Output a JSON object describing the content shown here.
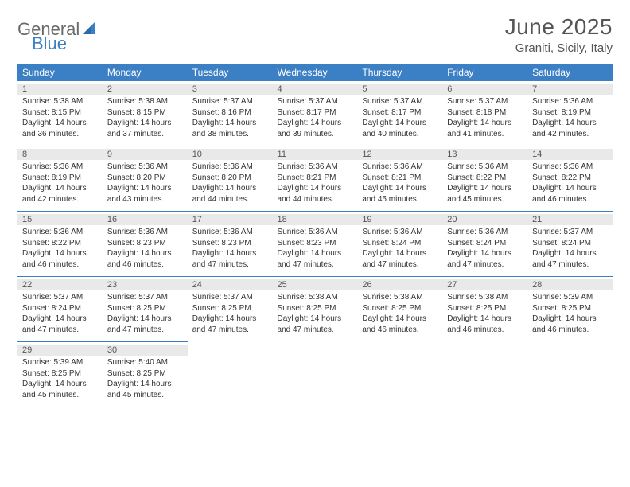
{
  "logo": {
    "part1": "General",
    "part2": "Blue"
  },
  "title": "June 2025",
  "location": "Graniti, Sicily, Italy",
  "colors": {
    "header_bg": "#3b7fc4",
    "header_text": "#ffffff",
    "daynum_bg": "#e9e9e9",
    "border": "#3b7fc4",
    "text": "#333333",
    "title_text": "#555555"
  },
  "weekdays": [
    "Sunday",
    "Monday",
    "Tuesday",
    "Wednesday",
    "Thursday",
    "Friday",
    "Saturday"
  ],
  "weeks": [
    [
      {
        "n": "1",
        "sr": "Sunrise: 5:38 AM",
        "ss": "Sunset: 8:15 PM",
        "d1": "Daylight: 14 hours",
        "d2": "and 36 minutes."
      },
      {
        "n": "2",
        "sr": "Sunrise: 5:38 AM",
        "ss": "Sunset: 8:15 PM",
        "d1": "Daylight: 14 hours",
        "d2": "and 37 minutes."
      },
      {
        "n": "3",
        "sr": "Sunrise: 5:37 AM",
        "ss": "Sunset: 8:16 PM",
        "d1": "Daylight: 14 hours",
        "d2": "and 38 minutes."
      },
      {
        "n": "4",
        "sr": "Sunrise: 5:37 AM",
        "ss": "Sunset: 8:17 PM",
        "d1": "Daylight: 14 hours",
        "d2": "and 39 minutes."
      },
      {
        "n": "5",
        "sr": "Sunrise: 5:37 AM",
        "ss": "Sunset: 8:17 PM",
        "d1": "Daylight: 14 hours",
        "d2": "and 40 minutes."
      },
      {
        "n": "6",
        "sr": "Sunrise: 5:37 AM",
        "ss": "Sunset: 8:18 PM",
        "d1": "Daylight: 14 hours",
        "d2": "and 41 minutes."
      },
      {
        "n": "7",
        "sr": "Sunrise: 5:36 AM",
        "ss": "Sunset: 8:19 PM",
        "d1": "Daylight: 14 hours",
        "d2": "and 42 minutes."
      }
    ],
    [
      {
        "n": "8",
        "sr": "Sunrise: 5:36 AM",
        "ss": "Sunset: 8:19 PM",
        "d1": "Daylight: 14 hours",
        "d2": "and 42 minutes."
      },
      {
        "n": "9",
        "sr": "Sunrise: 5:36 AM",
        "ss": "Sunset: 8:20 PM",
        "d1": "Daylight: 14 hours",
        "d2": "and 43 minutes."
      },
      {
        "n": "10",
        "sr": "Sunrise: 5:36 AM",
        "ss": "Sunset: 8:20 PM",
        "d1": "Daylight: 14 hours",
        "d2": "and 44 minutes."
      },
      {
        "n": "11",
        "sr": "Sunrise: 5:36 AM",
        "ss": "Sunset: 8:21 PM",
        "d1": "Daylight: 14 hours",
        "d2": "and 44 minutes."
      },
      {
        "n": "12",
        "sr": "Sunrise: 5:36 AM",
        "ss": "Sunset: 8:21 PM",
        "d1": "Daylight: 14 hours",
        "d2": "and 45 minutes."
      },
      {
        "n": "13",
        "sr": "Sunrise: 5:36 AM",
        "ss": "Sunset: 8:22 PM",
        "d1": "Daylight: 14 hours",
        "d2": "and 45 minutes."
      },
      {
        "n": "14",
        "sr": "Sunrise: 5:36 AM",
        "ss": "Sunset: 8:22 PM",
        "d1": "Daylight: 14 hours",
        "d2": "and 46 minutes."
      }
    ],
    [
      {
        "n": "15",
        "sr": "Sunrise: 5:36 AM",
        "ss": "Sunset: 8:22 PM",
        "d1": "Daylight: 14 hours",
        "d2": "and 46 minutes."
      },
      {
        "n": "16",
        "sr": "Sunrise: 5:36 AM",
        "ss": "Sunset: 8:23 PM",
        "d1": "Daylight: 14 hours",
        "d2": "and 46 minutes."
      },
      {
        "n": "17",
        "sr": "Sunrise: 5:36 AM",
        "ss": "Sunset: 8:23 PM",
        "d1": "Daylight: 14 hours",
        "d2": "and 47 minutes."
      },
      {
        "n": "18",
        "sr": "Sunrise: 5:36 AM",
        "ss": "Sunset: 8:23 PM",
        "d1": "Daylight: 14 hours",
        "d2": "and 47 minutes."
      },
      {
        "n": "19",
        "sr": "Sunrise: 5:36 AM",
        "ss": "Sunset: 8:24 PM",
        "d1": "Daylight: 14 hours",
        "d2": "and 47 minutes."
      },
      {
        "n": "20",
        "sr": "Sunrise: 5:36 AM",
        "ss": "Sunset: 8:24 PM",
        "d1": "Daylight: 14 hours",
        "d2": "and 47 minutes."
      },
      {
        "n": "21",
        "sr": "Sunrise: 5:37 AM",
        "ss": "Sunset: 8:24 PM",
        "d1": "Daylight: 14 hours",
        "d2": "and 47 minutes."
      }
    ],
    [
      {
        "n": "22",
        "sr": "Sunrise: 5:37 AM",
        "ss": "Sunset: 8:24 PM",
        "d1": "Daylight: 14 hours",
        "d2": "and 47 minutes."
      },
      {
        "n": "23",
        "sr": "Sunrise: 5:37 AM",
        "ss": "Sunset: 8:25 PM",
        "d1": "Daylight: 14 hours",
        "d2": "and 47 minutes."
      },
      {
        "n": "24",
        "sr": "Sunrise: 5:37 AM",
        "ss": "Sunset: 8:25 PM",
        "d1": "Daylight: 14 hours",
        "d2": "and 47 minutes."
      },
      {
        "n": "25",
        "sr": "Sunrise: 5:38 AM",
        "ss": "Sunset: 8:25 PM",
        "d1": "Daylight: 14 hours",
        "d2": "and 47 minutes."
      },
      {
        "n": "26",
        "sr": "Sunrise: 5:38 AM",
        "ss": "Sunset: 8:25 PM",
        "d1": "Daylight: 14 hours",
        "d2": "and 46 minutes."
      },
      {
        "n": "27",
        "sr": "Sunrise: 5:38 AM",
        "ss": "Sunset: 8:25 PM",
        "d1": "Daylight: 14 hours",
        "d2": "and 46 minutes."
      },
      {
        "n": "28",
        "sr": "Sunrise: 5:39 AM",
        "ss": "Sunset: 8:25 PM",
        "d1": "Daylight: 14 hours",
        "d2": "and 46 minutes."
      }
    ],
    [
      {
        "n": "29",
        "sr": "Sunrise: 5:39 AM",
        "ss": "Sunset: 8:25 PM",
        "d1": "Daylight: 14 hours",
        "d2": "and 45 minutes."
      },
      {
        "n": "30",
        "sr": "Sunrise: 5:40 AM",
        "ss": "Sunset: 8:25 PM",
        "d1": "Daylight: 14 hours",
        "d2": "and 45 minutes."
      },
      null,
      null,
      null,
      null,
      null
    ]
  ]
}
